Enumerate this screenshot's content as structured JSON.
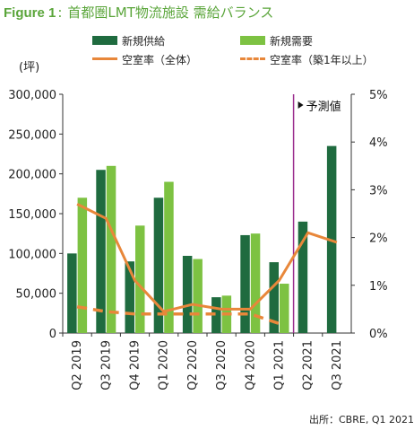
{
  "title": {
    "figure_no": "Figure 1",
    "colon": ":",
    "text": "首都圏LMT物流施設 需給バランス"
  },
  "unit_label": "(坪)",
  "source": "出所：CBRE, Q1 2021",
  "forecast_label": "予測値",
  "colors": {
    "supply": "#1f6b3f",
    "demand": "#7dc242",
    "vacancy_all": "#e8873a",
    "vacancy_1yr": "#e8873a",
    "forecast_line": "#9b2d8e",
    "title": "#5aa53a"
  },
  "legend": [
    {
      "key": "supply",
      "label": "新規供給",
      "kind": "bar"
    },
    {
      "key": "demand",
      "label": "新規需要",
      "kind": "bar"
    },
    {
      "key": "vacancy_all",
      "label": "空室率（全体）",
      "kind": "line"
    },
    {
      "key": "vacancy_1yr",
      "label": "空室率（築1年以上）",
      "kind": "dashed"
    }
  ],
  "chart_data": {
    "type": "bar",
    "categories": [
      "Q2 2019",
      "Q3 2019",
      "Q4 2019",
      "Q1 2020",
      "Q2 2020",
      "Q3 2020",
      "Q4 2020",
      "Q1 2021",
      "Q2 2021",
      "Q3 2021"
    ],
    "series": [
      {
        "name": "新規供給",
        "type": "bar",
        "axis": "left",
        "values": [
          100000,
          205000,
          90000,
          170000,
          97000,
          45000,
          123000,
          89000,
          140000,
          235000
        ]
      },
      {
        "name": "新規需要",
        "type": "bar",
        "axis": "left",
        "values": [
          170000,
          210000,
          135000,
          190000,
          93000,
          47000,
          125000,
          62000,
          null,
          null
        ]
      },
      {
        "name": "空室率（全体）",
        "type": "line",
        "axis": "right",
        "values": [
          2.7,
          2.4,
          1.1,
          0.45,
          0.6,
          0.5,
          0.5,
          1.1,
          2.1,
          1.9
        ]
      },
      {
        "name": "空室率（築1年以上）",
        "type": "line",
        "style": "dashed",
        "axis": "right",
        "values": [
          0.55,
          0.45,
          0.4,
          0.4,
          0.4,
          0.4,
          0.4,
          0.2,
          null,
          null
        ]
      }
    ],
    "ylim_left": [
      0,
      300000
    ],
    "yticks_left": [
      "0",
      "50,000",
      "100,000",
      "150,000",
      "200,000",
      "250,000",
      "300,000"
    ],
    "ylim_right": [
      0,
      5
    ],
    "yticks_right": [
      "0%",
      "1%",
      "2%",
      "3%",
      "4%",
      "5%"
    ],
    "forecast_start_category": "Q2 2021",
    "grid": false,
    "legend_position": "top"
  }
}
